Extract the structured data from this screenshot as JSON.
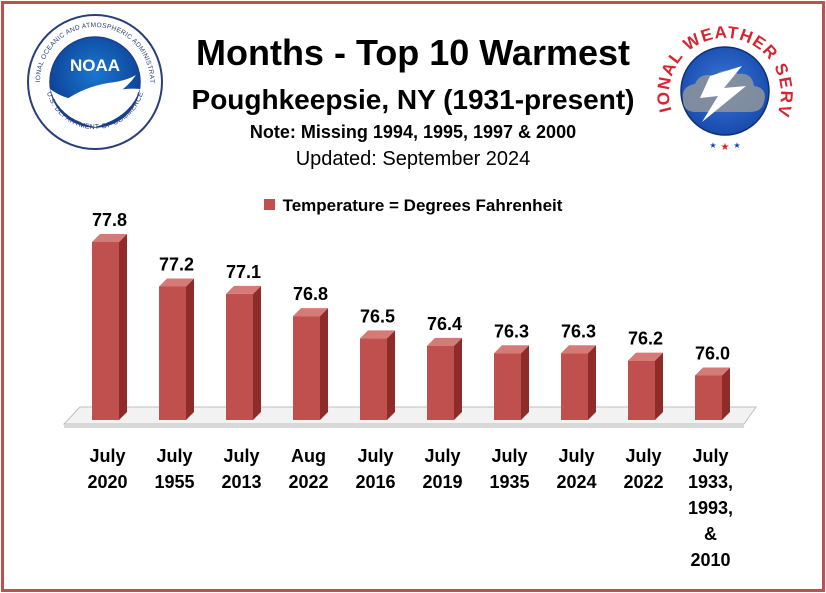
{
  "header": {
    "title": "Months - Top 10 Warmest",
    "subtitle": "Poughkeepsie, NY (1931-present)",
    "note": "Note: Missing 1994, 1995, 1997 & 2000",
    "updated": "Updated: September 2024"
  },
  "logos": {
    "noaa": {
      "wordmark": "NOAA",
      "ring_top": "NATIONAL OCEANIC AND ATMOSPHERIC ADMINISTRATION",
      "ring_bottom": "U.S. DEPARTMENT OF COMMERCE",
      "color": "#0a3d91"
    },
    "nws": {
      "ring_text": "NATIONAL WEATHER SERVICE",
      "color": "#d9232e"
    }
  },
  "colors": {
    "bar_front": "#c0504d",
    "bar_side": "#8e2c29",
    "bar_top": "#d47b78",
    "frame": "#c0504d"
  },
  "chart_data": {
    "type": "bar",
    "legend": "Temperature = Degrees Fahrenheit",
    "legend_position": "top",
    "grid": false,
    "ylim": [
      75.4,
      77.8
    ],
    "series": [
      {
        "name": "Temperature = Degrees Fahrenheit",
        "values": [
          77.8,
          77.2,
          77.1,
          76.8,
          76.5,
          76.4,
          76.3,
          76.3,
          76.2,
          76.0
        ]
      }
    ],
    "value_labels": [
      "77.8",
      "77.2",
      "77.1",
      "76.8",
      "76.5",
      "76.4",
      "76.3",
      "76.3",
      "76.2",
      "76.0"
    ],
    "categories": [
      [
        "July",
        "2020"
      ],
      [
        "July",
        "1955"
      ],
      [
        "July",
        "2013"
      ],
      [
        "Aug",
        "2022"
      ],
      [
        "July",
        "2016"
      ],
      [
        "July",
        "2019"
      ],
      [
        "July",
        "1935"
      ],
      [
        "July",
        "2024"
      ],
      [
        "July",
        "2022"
      ],
      [
        "July",
        "1933,",
        "1993,",
        "&",
        "2010"
      ]
    ]
  }
}
